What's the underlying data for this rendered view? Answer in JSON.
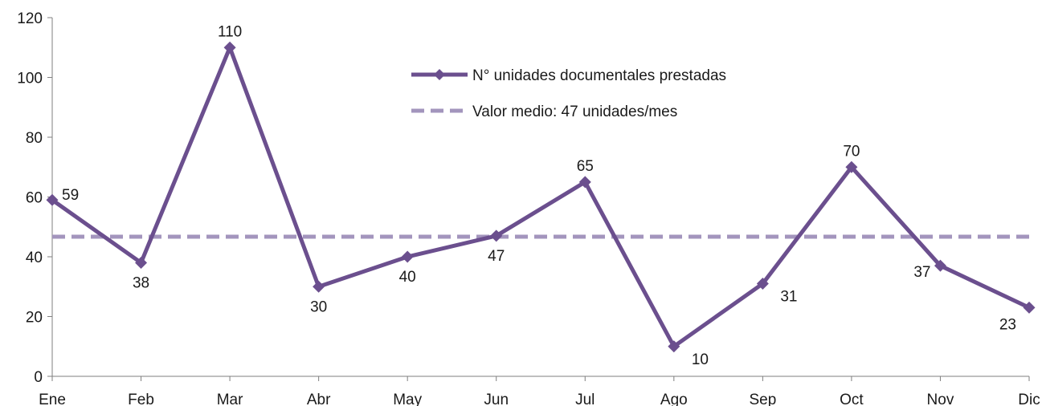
{
  "chart_data": {
    "type": "line",
    "categories": [
      "Ene",
      "Feb",
      "Mar",
      "Abr",
      "May",
      "Jun",
      "Jul",
      "Ago",
      "Sep",
      "Oct",
      "Nov",
      "Dic"
    ],
    "series": [
      {
        "name": "N° unidades documentales prestadas",
        "values": [
          59,
          38,
          110,
          30,
          40,
          47,
          65,
          10,
          31,
          70,
          37,
          23
        ],
        "color": "#6b4f8e",
        "marker": "diamond"
      },
      {
        "name": "Valor medio: 47 unidades/mes",
        "values": [
          46.7,
          46.7,
          46.7,
          46.7,
          46.7,
          46.7,
          46.7,
          46.7,
          46.7,
          46.7,
          46.7,
          46.7
        ],
        "color": "#a395bd",
        "style": "dashed"
      }
    ],
    "yticks": [
      "0",
      "20",
      "40",
      "60",
      "80",
      "100",
      "120"
    ],
    "ylim": [
      0,
      120
    ],
    "grid": false,
    "legend": "top-center",
    "data_labels": true
  }
}
